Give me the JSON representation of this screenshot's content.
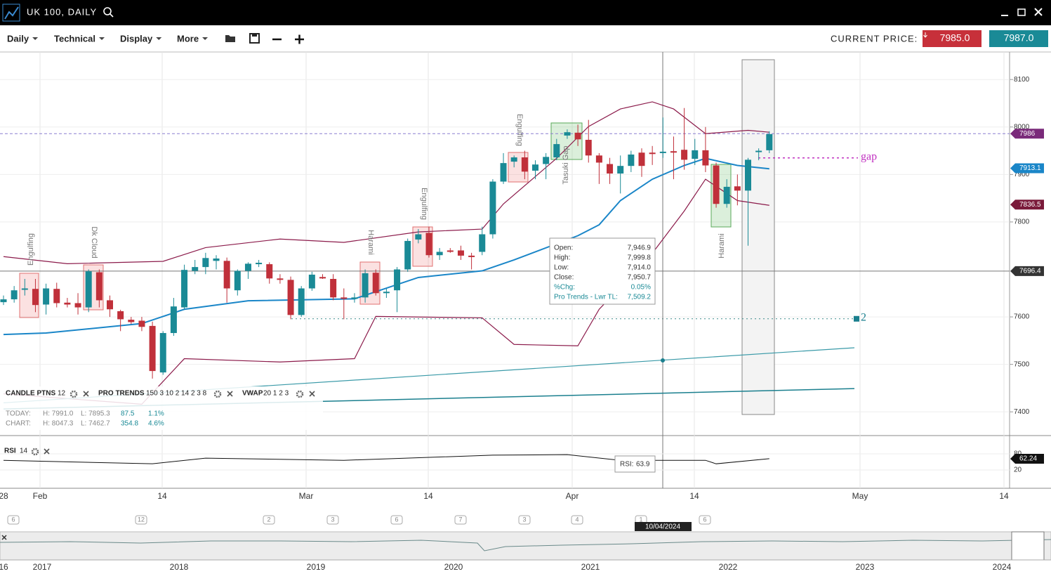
{
  "window": {
    "title": "UK 100, DAILY"
  },
  "toolbar": {
    "menus": [
      "Daily",
      "Technical",
      "Display",
      "More"
    ],
    "current_price_label": "CURRENT PRICE:",
    "bid": "7985.0",
    "ask": "7987.0"
  },
  "chart_data": {
    "type": "candlestick",
    "up_color": "#1a8a96",
    "down_color": "#c0303a",
    "ylim": [
      7350,
      8158
    ],
    "yticks": [
      8100,
      8000,
      7900,
      7800,
      7600,
      7500,
      7400
    ],
    "candles": [
      [
        7631,
        7645,
        7625,
        7637
      ],
      [
        7637,
        7665,
        7630,
        7656
      ],
      [
        7659,
        7680,
        7645,
        7660
      ],
      [
        7659,
        7680,
        7610,
        7625
      ],
      [
        7626,
        7670,
        7605,
        7660
      ],
      [
        7659,
        7672,
        7620,
        7629
      ],
      [
        7630,
        7640,
        7620,
        7626
      ],
      [
        7629,
        7650,
        7605,
        7620
      ],
      [
        7620,
        7700,
        7610,
        7696
      ],
      [
        7694,
        7700,
        7620,
        7635
      ],
      [
        7635,
        7645,
        7600,
        7616
      ],
      [
        7612,
        7615,
        7570,
        7595
      ],
      [
        7594,
        7600,
        7585,
        7589
      ],
      [
        7592,
        7600,
        7570,
        7579
      ],
      [
        7581,
        7590,
        7470,
        7486
      ],
      [
        7483,
        7570,
        7478,
        7566
      ],
      [
        7566,
        7640,
        7560,
        7622
      ],
      [
        7620,
        7710,
        7615,
        7699
      ],
      [
        7697,
        7720,
        7690,
        7705
      ],
      [
        7705,
        7735,
        7690,
        7724
      ],
      [
        7718,
        7730,
        7700,
        7723
      ],
      [
        7718,
        7725,
        7630,
        7660
      ],
      [
        7656,
        7700,
        7645,
        7697
      ],
      [
        7697,
        7715,
        7680,
        7712
      ],
      [
        7711,
        7720,
        7705,
        7714
      ],
      [
        7711,
        7715,
        7670,
        7681
      ],
      [
        7681,
        7690,
        7670,
        7678
      ],
      [
        7678,
        7685,
        7595,
        7604
      ],
      [
        7604,
        7665,
        7600,
        7660
      ],
      [
        7660,
        7695,
        7655,
        7689
      ],
      [
        7684,
        7690,
        7680,
        7681
      ],
      [
        7680,
        7690,
        7635,
        7641
      ],
      [
        7641,
        7660,
        7595,
        7638
      ],
      [
        7638,
        7650,
        7630,
        7641
      ],
      [
        7641,
        7700,
        7630,
        7692
      ],
      [
        7693,
        7700,
        7645,
        7650
      ],
      [
        7650,
        7660,
        7640,
        7653
      ],
      [
        7656,
        7705,
        7610,
        7700
      ],
      [
        7700,
        7765,
        7695,
        7760
      ],
      [
        7763,
        7785,
        7755,
        7774
      ],
      [
        7777,
        7790,
        7725,
        7730
      ],
      [
        7730,
        7745,
        7720,
        7737
      ],
      [
        7740,
        7745,
        7735,
        7737
      ],
      [
        7740,
        7750,
        7720,
        7729
      ],
      [
        7729,
        7735,
        7700,
        7727
      ],
      [
        7737,
        7790,
        7730,
        7774
      ],
      [
        7774,
        7890,
        7765,
        7885
      ],
      [
        7885,
        7945,
        7880,
        7924
      ],
      [
        7927,
        7940,
        7915,
        7936
      ],
      [
        7936,
        7950,
        7890,
        7906
      ],
      [
        7908,
        7930,
        7890,
        7921
      ],
      [
        7922,
        7945,
        7890,
        7937
      ],
      [
        7936,
        7975,
        7930,
        7964
      ],
      [
        7982,
        7995,
        7975,
        7989
      ],
      [
        7988,
        8005,
        7960,
        7974
      ],
      [
        7973,
        8015,
        7925,
        7940
      ],
      [
        7940,
        7945,
        7880,
        7925
      ],
      [
        7922,
        7935,
        7880,
        7902
      ],
      [
        7902,
        7940,
        7860,
        7918
      ],
      [
        7918,
        7950,
        7905,
        7942
      ],
      [
        7946,
        7955,
        7895,
        7918
      ],
      [
        7946,
        7960,
        7920,
        7945
      ],
      [
        7948,
        8020,
        7935,
        7948
      ],
      [
        7949,
        7980,
        7890,
        7948
      ],
      [
        7952,
        8040,
        7910,
        7931
      ],
      [
        7933,
        7975,
        7920,
        7951
      ],
      [
        7951,
        8000,
        7905,
        7919
      ],
      [
        7919,
        7925,
        7830,
        7838
      ],
      [
        7838,
        7890,
        7830,
        7874
      ],
      [
        7875,
        7900,
        7835,
        7866
      ],
      [
        7866,
        7935,
        7750,
        7931
      ],
      [
        7948,
        7955,
        7930,
        7950
      ],
      [
        7951,
        7991,
        7945,
        7985
      ]
    ],
    "lines": [
      {
        "color": "#8b1a4a",
        "x_index": [
          0,
          6,
          15,
          19,
          26,
          32,
          39,
          45,
          47,
          52,
          55,
          58,
          61,
          63,
          66,
          70,
          72
        ],
        "values": [
          7727,
          7712,
          7717,
          7746,
          7764,
          7757,
          7779,
          7785,
          7838,
          7934,
          8001,
          8038,
          8053,
          8038,
          7986,
          7993,
          7989
        ]
      },
      {
        "color": "#1a86c8",
        "x_index": [
          0,
          4,
          13,
          17,
          23,
          33,
          39,
          45,
          48,
          54,
          56,
          58,
          61,
          64,
          66,
          69,
          72
        ],
        "values": [
          7563,
          7566,
          7586,
          7616,
          7634,
          7638,
          7683,
          7697,
          7720,
          7771,
          7794,
          7845,
          7890,
          7919,
          7934,
          7919,
          7912
        ]
      },
      {
        "color": "#8b1a4a",
        "x_index": [
          0,
          13,
          17,
          26,
          33,
          35,
          45,
          48,
          54,
          56,
          61,
          64,
          66,
          69,
          72
        ],
        "values": [
          7438,
          7416,
          7512,
          7505,
          7512,
          7601,
          7598,
          7542,
          7539,
          7616,
          7734,
          7823,
          7890,
          7845,
          7835
        ]
      },
      {
        "color": "#3a9aa8",
        "x_index": [
          0,
          80
        ],
        "values": [
          7419,
          7535
        ]
      },
      {
        "color": "#1a7f8e",
        "x_index": [
          0,
          80
        ],
        "values": [
          7406,
          7449
        ]
      }
    ],
    "levels": [
      {
        "value": 7986,
        "color": "#8a7fd0"
      },
      {
        "value": 7935,
        "color": "#c030c0"
      },
      {
        "value": 7596,
        "color": "#3a8a8a"
      }
    ],
    "price_tags": [
      {
        "value": 7986,
        "color": "#7a2a7a"
      },
      {
        "value": 7913.1,
        "color": "#1a86c8"
      },
      {
        "value": 7836.5,
        "color": "#7a1a3a"
      },
      {
        "value": 7696.4,
        "color": "#333333"
      }
    ],
    "annotations": [
      "Engulfing",
      "Dk Cloud",
      "Harami",
      "Engulfing",
      "Engulfing",
      "Tasuki Gap",
      "Harami",
      "gap",
      "2"
    ],
    "dates": [
      "28",
      "Feb",
      "14",
      "Mar",
      "14",
      "Apr",
      "14",
      "May",
      "14"
    ],
    "badges": [
      "6",
      "12",
      "2",
      "3",
      "6",
      "7",
      "3",
      "4",
      "1",
      "6"
    ],
    "crosshair_date": "10/04/2024",
    "years": [
      "16",
      "2017",
      "2018",
      "2019",
      "2020",
      "2021",
      "2022",
      "2023",
      "2024"
    ]
  },
  "info_box": {
    "rows": [
      [
        "Open:",
        "7,946.9"
      ],
      [
        "High:",
        "7,999.8"
      ],
      [
        "Low:",
        "7,914.0"
      ],
      [
        "Close:",
        "7,950.7"
      ],
      [
        "%Chg:",
        "0.05%"
      ],
      [
        "Pro Trends - Lwr TL:",
        "7,509.2"
      ]
    ]
  },
  "indicators": {
    "legend": [
      "CANDLE PTNS",
      "12",
      "PRO TRENDS",
      "150 3 10 2 14 2 3 8",
      "VWAP",
      "20 1 2 3"
    ],
    "today": [
      "TODAY:",
      "H: 7991.0",
      "L: 7895.3",
      "87.5",
      "1.1%"
    ],
    "chart": [
      "CHART:",
      "H: 8047.3",
      "L: 7462.7",
      "354.8",
      "4.6%"
    ]
  },
  "rsi": {
    "label": "RSI",
    "period": "14",
    "readout": "RSI:",
    "readout_value": "63.9",
    "last": "62.24",
    "yticks": [
      80,
      20
    ],
    "x_index": [
      0,
      14,
      19,
      32,
      46,
      53,
      58,
      66,
      67,
      72
    ],
    "values": [
      56,
      43,
      64,
      56,
      75,
      77,
      56,
      56,
      43,
      62
    ]
  }
}
